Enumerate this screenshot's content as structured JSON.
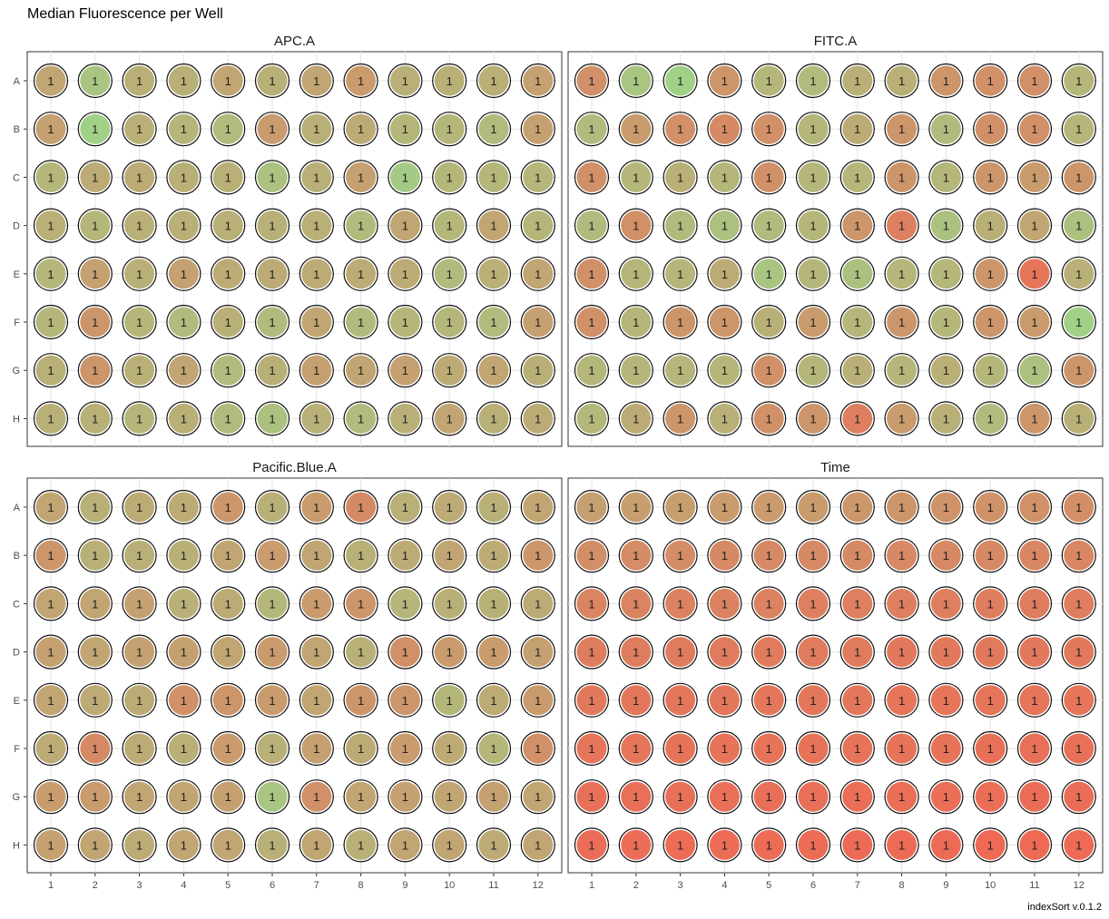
{
  "chart_data": {
    "type": "heatmap",
    "title": "Median Fluorescence per Well",
    "caption": "indexSort v.0.1.2",
    "rows": [
      "A",
      "B",
      "C",
      "D",
      "E",
      "F",
      "G",
      "H"
    ],
    "columns": [
      "1",
      "2",
      "3",
      "4",
      "5",
      "6",
      "7",
      "8",
      "9",
      "10",
      "11",
      "12"
    ],
    "well_label": "1",
    "color_scale": {
      "low": "#9cd68a",
      "high": "#ee6a55"
    },
    "panels": [
      {
        "name": "APC.A",
        "values": [
          [
            0.45,
            0.15,
            0.35,
            0.35,
            0.45,
            0.35,
            0.45,
            0.55,
            0.35,
            0.35,
            0.35,
            0.5
          ],
          [
            0.5,
            0.05,
            0.35,
            0.3,
            0.25,
            0.55,
            0.35,
            0.4,
            0.3,
            0.3,
            0.25,
            0.5
          ],
          [
            0.3,
            0.4,
            0.4,
            0.35,
            0.35,
            0.2,
            0.35,
            0.5,
            0.1,
            0.3,
            0.3,
            0.3
          ],
          [
            0.35,
            0.3,
            0.35,
            0.35,
            0.35,
            0.35,
            0.35,
            0.25,
            0.45,
            0.3,
            0.45,
            0.3
          ],
          [
            0.3,
            0.5,
            0.35,
            0.5,
            0.4,
            0.4,
            0.4,
            0.4,
            0.4,
            0.25,
            0.35,
            0.45
          ],
          [
            0.3,
            0.6,
            0.3,
            0.25,
            0.35,
            0.25,
            0.45,
            0.25,
            0.3,
            0.3,
            0.25,
            0.5
          ],
          [
            0.35,
            0.6,
            0.35,
            0.45,
            0.25,
            0.35,
            0.5,
            0.45,
            0.5,
            0.4,
            0.45,
            0.35
          ],
          [
            0.35,
            0.35,
            0.3,
            0.35,
            0.25,
            0.2,
            0.35,
            0.25,
            0.35,
            0.45,
            0.35,
            0.4
          ]
        ]
      },
      {
        "name": "FITC.A",
        "values": [
          [
            0.65,
            0.15,
            0.05,
            0.6,
            0.3,
            0.25,
            0.35,
            0.35,
            0.6,
            0.65,
            0.65,
            0.3
          ],
          [
            0.25,
            0.55,
            0.65,
            0.7,
            0.65,
            0.3,
            0.4,
            0.6,
            0.25,
            0.65,
            0.65,
            0.3
          ],
          [
            0.65,
            0.3,
            0.35,
            0.3,
            0.65,
            0.3,
            0.3,
            0.6,
            0.3,
            0.6,
            0.55,
            0.6
          ],
          [
            0.25,
            0.65,
            0.25,
            0.2,
            0.25,
            0.3,
            0.6,
            0.8,
            0.2,
            0.35,
            0.45,
            0.2
          ],
          [
            0.65,
            0.3,
            0.3,
            0.4,
            0.15,
            0.3,
            0.2,
            0.3,
            0.3,
            0.6,
            0.9,
            0.35
          ],
          [
            0.65,
            0.3,
            0.6,
            0.6,
            0.35,
            0.55,
            0.3,
            0.6,
            0.3,
            0.6,
            0.55,
            0.05
          ],
          [
            0.3,
            0.3,
            0.3,
            0.3,
            0.65,
            0.3,
            0.35,
            0.3,
            0.35,
            0.3,
            0.2,
            0.6
          ],
          [
            0.3,
            0.4,
            0.6,
            0.35,
            0.65,
            0.6,
            0.8,
            0.55,
            0.35,
            0.25,
            0.6,
            0.35
          ]
        ]
      },
      {
        "name": "Pacific.Blue.A",
        "values": [
          [
            0.45,
            0.35,
            0.4,
            0.4,
            0.6,
            0.35,
            0.55,
            0.7,
            0.35,
            0.4,
            0.35,
            0.45
          ],
          [
            0.6,
            0.35,
            0.35,
            0.35,
            0.45,
            0.55,
            0.45,
            0.35,
            0.4,
            0.45,
            0.4,
            0.6
          ],
          [
            0.45,
            0.45,
            0.5,
            0.35,
            0.4,
            0.3,
            0.55,
            0.6,
            0.3,
            0.35,
            0.35,
            0.4
          ],
          [
            0.5,
            0.45,
            0.5,
            0.5,
            0.45,
            0.55,
            0.45,
            0.35,
            0.65,
            0.55,
            0.55,
            0.5
          ],
          [
            0.45,
            0.4,
            0.4,
            0.65,
            0.6,
            0.55,
            0.45,
            0.6,
            0.6,
            0.3,
            0.4,
            0.55
          ],
          [
            0.4,
            0.7,
            0.4,
            0.35,
            0.55,
            0.35,
            0.5,
            0.4,
            0.55,
            0.4,
            0.3,
            0.65
          ],
          [
            0.55,
            0.55,
            0.45,
            0.45,
            0.5,
            0.15,
            0.65,
            0.45,
            0.5,
            0.45,
            0.5,
            0.45
          ],
          [
            0.5,
            0.45,
            0.4,
            0.45,
            0.45,
            0.35,
            0.45,
            0.35,
            0.45,
            0.45,
            0.4,
            0.45
          ]
        ]
      },
      {
        "name": "Time",
        "values": [
          [
            0.5,
            0.52,
            0.52,
            0.55,
            0.55,
            0.55,
            0.58,
            0.6,
            0.62,
            0.62,
            0.64,
            0.66
          ],
          [
            0.66,
            0.68,
            0.68,
            0.7,
            0.7,
            0.7,
            0.7,
            0.72,
            0.72,
            0.72,
            0.74,
            0.74
          ],
          [
            0.76,
            0.76,
            0.78,
            0.78,
            0.78,
            0.8,
            0.8,
            0.8,
            0.8,
            0.82,
            0.82,
            0.82
          ],
          [
            0.82,
            0.82,
            0.84,
            0.84,
            0.84,
            0.84,
            0.84,
            0.86,
            0.86,
            0.86,
            0.86,
            0.86
          ],
          [
            0.86,
            0.88,
            0.88,
            0.88,
            0.88,
            0.88,
            0.88,
            0.9,
            0.9,
            0.9,
            0.9,
            0.9
          ],
          [
            0.9,
            0.9,
            0.92,
            0.92,
            0.92,
            0.92,
            0.92,
            0.92,
            0.92,
            0.94,
            0.94,
            0.94
          ],
          [
            0.94,
            0.94,
            0.94,
            0.95,
            0.95,
            0.95,
            0.96,
            0.96,
            0.96,
            0.96,
            0.97,
            0.97
          ],
          [
            0.97,
            0.97,
            0.98,
            0.98,
            0.98,
            0.98,
            0.99,
            0.99,
            0.99,
            1.0,
            1.0,
            1.0
          ]
        ]
      }
    ]
  }
}
